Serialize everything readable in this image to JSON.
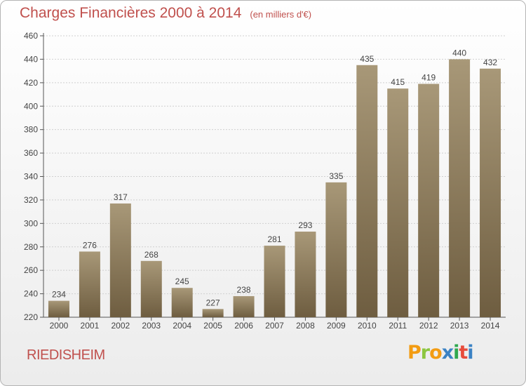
{
  "header": {
    "title": "Charges Financières 2000 à 2014",
    "unit": "(en milliers d'€)"
  },
  "footer": {
    "commune": "RIEDISHEIM",
    "logo_text": "Proxiti",
    "logo_colors": [
      "#f39c12",
      "#3b82c4",
      "#2fa84f",
      "#e74c3c",
      "#8cc63f"
    ]
  },
  "colors": {
    "title": "#c0504d",
    "bar_top": "#a89878",
    "bar_bottom": "#6e5d40"
  },
  "chart_data": {
    "type": "bar",
    "categories": [
      "2000",
      "2001",
      "2002",
      "2003",
      "2004",
      "2005",
      "2006",
      "2007",
      "2008",
      "2009",
      "2010",
      "2011",
      "2012",
      "2013",
      "2014"
    ],
    "values": [
      234,
      276,
      317,
      268,
      245,
      227,
      238,
      281,
      293,
      335,
      435,
      415,
      419,
      440,
      432
    ],
    "ylim": [
      220,
      460
    ],
    "yticks": [
      220,
      240,
      260,
      280,
      300,
      320,
      340,
      360,
      380,
      400,
      420,
      440,
      460
    ],
    "grid": true
  }
}
